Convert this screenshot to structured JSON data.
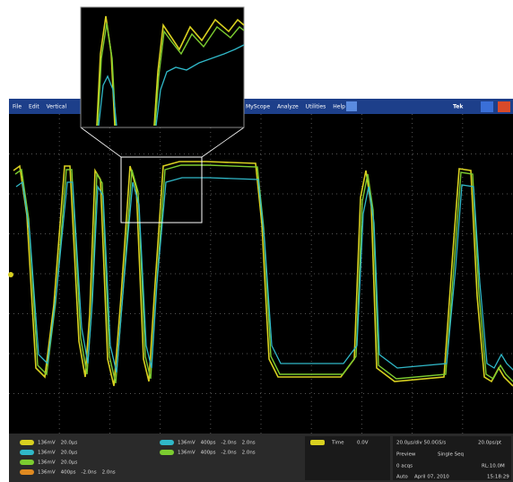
{
  "menu": {
    "items": [
      "File",
      "Edit",
      "Vertical",
      "MyScope",
      "Analyze",
      "Utilities",
      "Help"
    ],
    "brand": "Tek"
  },
  "channels": [
    {
      "scale": "136mV",
      "timebase": "20.0µs"
    },
    {
      "scale": "136mV",
      "timebase": "20.0µs"
    },
    {
      "scale": "136mV",
      "timebase": "20.0µs"
    },
    {
      "scale": "136mV",
      "timebase": "400ps",
      "position": "-2.0ns",
      "length": "2.0ns"
    }
  ],
  "zooms": [
    {
      "scale": "136mV",
      "timebase": "400ps",
      "position": "-2.0ns",
      "length": "2.0ns"
    },
    {
      "scale": "136mV",
      "timebase": "400ps",
      "position": "-2.0ns",
      "length": "2.0ns"
    }
  ],
  "trigger": {
    "label": "Time",
    "level": "0.0V"
  },
  "status": {
    "horizontal": "20.0µs/div 50.0GS/s",
    "resolution": "20.0ps/pt",
    "mode": "Preview",
    "acquisition": "Single Seq",
    "acqs": "0 acqs",
    "record": "RL:10.0M",
    "trigger_mode": "Auto",
    "date": "April 07, 2010",
    "time": "15:18:29"
  }
}
